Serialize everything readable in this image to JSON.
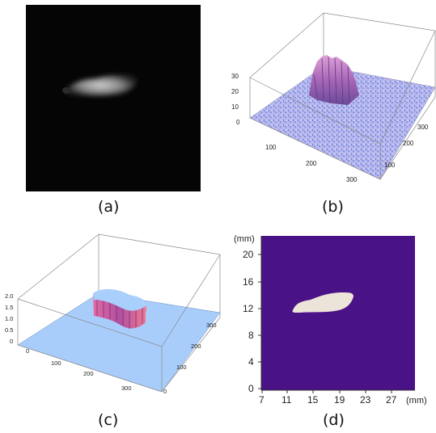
{
  "panels": {
    "a": {
      "caption": "(a)"
    },
    "b": {
      "caption": "(b)",
      "z_ticks": [
        "30",
        "20",
        "10",
        "0"
      ],
      "x_ticks": [
        "100",
        "200",
        "300"
      ],
      "y_ticks": [
        "100",
        "200",
        "300"
      ]
    },
    "c": {
      "caption": "(c)",
      "z_ticks": [
        "2.0",
        "1.5",
        "1.0",
        "0.5",
        "0"
      ],
      "x_ticks": [
        "0",
        "100",
        "200",
        "300"
      ],
      "y_ticks": [
        "300",
        "200",
        "100",
        "0"
      ]
    },
    "d": {
      "caption": "(d)",
      "y_unit": "(mm)",
      "x_unit": "(mm)",
      "y_ticks": [
        "20",
        "16",
        "12",
        "8",
        "4",
        "0"
      ],
      "x_ticks": [
        "7",
        "11",
        "15",
        "19",
        "23",
        "27"
      ],
      "background_color": "#4a1287",
      "shape_color": "#ece4d8"
    }
  }
}
